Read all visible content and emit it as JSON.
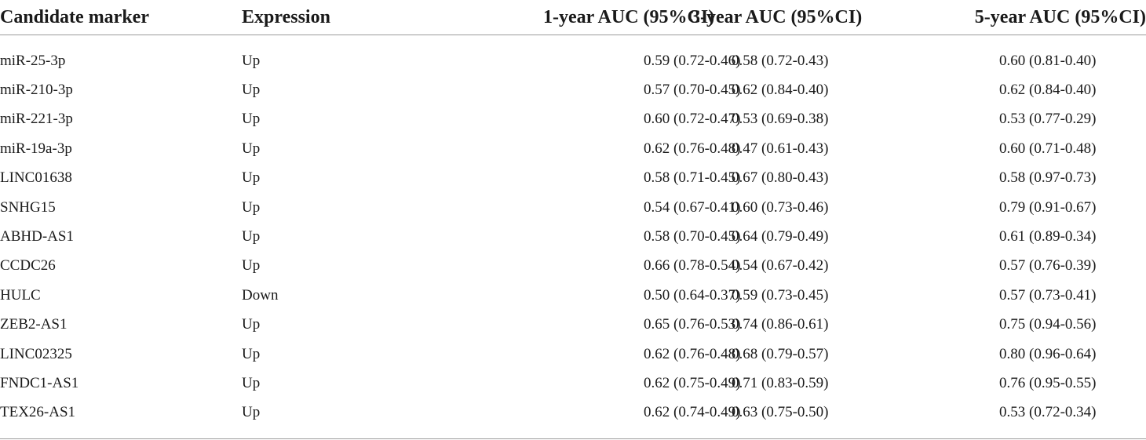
{
  "table": {
    "headers": [
      "Candidate marker",
      "Expression",
      "1-year AUC (95%CI)",
      "3-year AUC (95%CI)",
      "5-year AUC (95%CI)"
    ],
    "rows": [
      [
        "miR-25-3p",
        "Up",
        "0.59 (0.72-0.46)",
        "0.58 (0.72-0.43)",
        "0.60 (0.81-0.40)"
      ],
      [
        "miR-210-3p",
        "Up",
        "0.57 (0.70-0.45)",
        "0.62 (0.84-0.40)",
        "0.62 (0.84-0.40)"
      ],
      [
        "miR-221-3p",
        "Up",
        "0.60 (0.72-0.47)",
        "0.53 (0.69-0.38)",
        "0.53 (0.77-0.29)"
      ],
      [
        "miR-19a-3p",
        "Up",
        "0.62 (0.76-0.48)",
        "0.47 (0.61-0.43)",
        "0.60 (0.71-0.48)"
      ],
      [
        "LINC01638",
        "Up",
        "0.58 (0.71-0.45)",
        "0.67 (0.80-0.43)",
        "0.58 (0.97-0.73)"
      ],
      [
        "SNHG15",
        "Up",
        "0.54 (0.67-0.41)",
        "0.60 (0.73-0.46)",
        "0.79 (0.91-0.67)"
      ],
      [
        "ABHD-AS1",
        "Up",
        "0.58 (0.70-0.45)",
        "0.64 (0.79-0.49)",
        "0.61 (0.89-0.34)"
      ],
      [
        "CCDC26",
        "Up",
        "0.66 (0.78-0.54)",
        "0.54 (0.67-0.42)",
        "0.57 (0.76-0.39)"
      ],
      [
        "HULC",
        "Down",
        "0.50 (0.64-0.37)",
        "0.59 (0.73-0.45)",
        "0.57 (0.73-0.41)"
      ],
      [
        "ZEB2-AS1",
        "Up",
        "0.65 (0.76-0.53)",
        "0.74 (0.86-0.61)",
        "0.75 (0.94-0.56)"
      ],
      [
        "LINC02325",
        "Up",
        "0.62 (0.76-0.48)",
        "0.68 (0.79-0.57)",
        "0.80 (0.96-0.64)"
      ],
      [
        "FNDC1-AS1",
        "Up",
        "0.62 (0.75-0.49)",
        "0.71 (0.83-0.59)",
        "0.76 (0.95-0.55)"
      ],
      [
        "TEX26-AS1",
        "Up",
        "0.62 (0.74-0.49)",
        "0.63 (0.75-0.50)",
        "0.53 (0.72-0.34)"
      ]
    ]
  }
}
